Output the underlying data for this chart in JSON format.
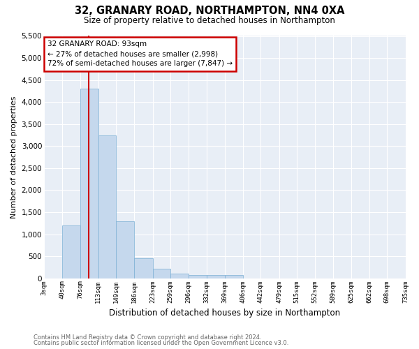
{
  "title": "32, GRANARY ROAD, NORTHAMPTON, NN4 0XA",
  "subtitle": "Size of property relative to detached houses in Northampton",
  "xlabel": "Distribution of detached houses by size in Northampton",
  "ylabel": "Number of detached properties",
  "footnote1": "Contains HM Land Registry data © Crown copyright and database right 2024.",
  "footnote2": "Contains public sector information licensed under the Open Government Licence v3.0.",
  "bar_color": "#c5d8ed",
  "bar_edge_color": "#7bafd4",
  "background_color": "#e8eef6",
  "grid_color": "#ffffff",
  "red_line_color": "#cc0000",
  "annotation_box_color": "#cc0000",
  "annotation_line1": "32 GRANARY ROAD: 93sqm",
  "annotation_line2": "← 27% of detached houses are smaller (2,998)",
  "annotation_line3": "72% of semi-detached houses are larger (7,847) →",
  "red_line_x": 93,
  "bin_edges": [
    3,
    40,
    76,
    113,
    149,
    186,
    223,
    259,
    296,
    332,
    369,
    406,
    442,
    479,
    515,
    552,
    589,
    625,
    662,
    698,
    735
  ],
  "bar_heights": [
    0,
    1200,
    4300,
    3250,
    1300,
    460,
    220,
    100,
    75,
    75,
    75,
    0,
    0,
    0,
    0,
    0,
    0,
    0,
    0,
    0
  ],
  "ylim": [
    0,
    5500
  ],
  "yticks": [
    0,
    500,
    1000,
    1500,
    2000,
    2500,
    3000,
    3500,
    4000,
    4500,
    5000,
    5500
  ]
}
